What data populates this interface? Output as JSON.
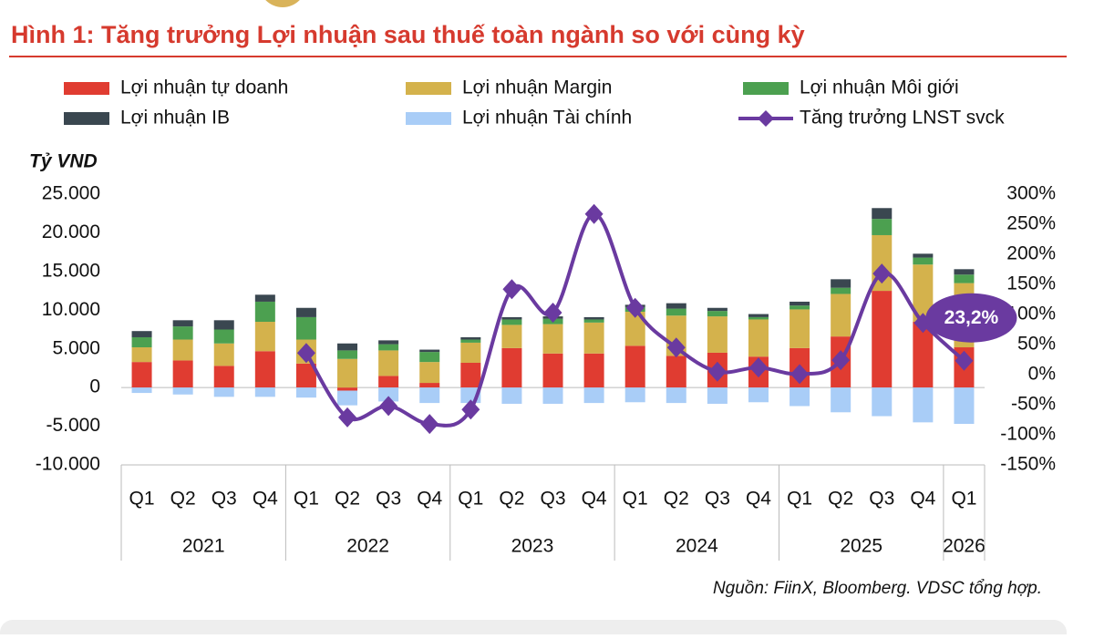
{
  "chart_data": {
    "type": "bar",
    "title": "Hình 1: Tăng trưởng Lợi nhuận sau thuế toàn ngành so với cùng kỳ",
    "y_label": "Tỷ VND",
    "source": "Nguồn: FiinX, Bloomberg. VDSC tổng hợp.",
    "stacked": true,
    "categories": [
      "Q1",
      "Q2",
      "Q3",
      "Q4",
      "Q1",
      "Q2",
      "Q3",
      "Q4",
      "Q1",
      "Q2",
      "Q3",
      "Q4",
      "Q1",
      "Q2",
      "Q3",
      "Q4",
      "Q1",
      "Q2",
      "Q3",
      "Q4",
      "Q1"
    ],
    "years": [
      "2021",
      "2021",
      "2021",
      "2021",
      "2022",
      "2022",
      "2022",
      "2022",
      "2023",
      "2023",
      "2023",
      "2023",
      "2024",
      "2024",
      "2024",
      "2024",
      "2025",
      "2025",
      "2025",
      "2025",
      "2026"
    ],
    "series": [
      {
        "name": "Lợi nhuận tự doanh",
        "color": "#e03c31",
        "values": [
          3300,
          3500,
          2800,
          4700,
          3100,
          -400,
          1500,
          600,
          3200,
          5100,
          4400,
          4400,
          5400,
          4100,
          4500,
          4000,
          5100,
          6600,
          12500,
          8500,
          5200
        ]
      },
      {
        "name": "Lợi nhuận Margin",
        "color": "#d4b24c",
        "values": [
          1900,
          2700,
          2900,
          3800,
          3100,
          3700,
          3300,
          2700,
          2600,
          3000,
          3800,
          4000,
          4400,
          5200,
          4700,
          4800,
          5000,
          5500,
          7200,
          7400,
          8300
        ]
      },
      {
        "name": "Lợi nhuận Môi giới",
        "color": "#4ca050",
        "values": [
          1300,
          1700,
          1800,
          2600,
          2900,
          1100,
          800,
          1300,
          400,
          700,
          700,
          400,
          600,
          900,
          700,
          300,
          500,
          800,
          2100,
          900,
          1100
        ]
      },
      {
        "name": "Lợi nhuận IB",
        "color": "#3a4750",
        "values": [
          800,
          800,
          1200,
          900,
          1200,
          900,
          500,
          300,
          300,
          300,
          300,
          300,
          300,
          700,
          400,
          400,
          500,
          1100,
          1400,
          500,
          700
        ]
      },
      {
        "name": "Lợi nhuận Tài chính",
        "color": "#a9cdf7",
        "values": [
          -700,
          -900,
          -1200,
          -1200,
          -1300,
          -1900,
          -1800,
          -2000,
          -2000,
          -2100,
          -2100,
          -2000,
          -1900,
          -2000,
          -2100,
          -1900,
          -2400,
          -3200,
          -3700,
          -4500,
          -4700
        ]
      },
      {
        "name": "Tăng trưởng LNST svck",
        "type": "line",
        "axis": "y2",
        "color": "#6a3aa0",
        "values": [
          null,
          null,
          null,
          null,
          36,
          -71,
          -52,
          -82,
          -58,
          142,
          103,
          267,
          111,
          45,
          5,
          12,
          1,
          24,
          168,
          86,
          23.2
        ],
        "value_labels": [
          null,
          null,
          null,
          null,
          null,
          null,
          null,
          null,
          null,
          null,
          null,
          null,
          null,
          null,
          null,
          null,
          null,
          null,
          null,
          null,
          "23,2%"
        ]
      }
    ],
    "ylim": [
      -10000,
      25000
    ],
    "yticks": [
      {
        "value": -10000,
        "label": "-10.000"
      },
      {
        "value": -5000,
        "label": "-5.000"
      },
      0,
      {
        "value": 5000,
        "label": "5.000"
      },
      {
        "value": 10000,
        "label": "10.000"
      },
      {
        "value": 15000,
        "label": "15.000"
      },
      {
        "value": 20000,
        "label": "20.000"
      },
      {
        "value": 25000,
        "label": "25.000"
      }
    ],
    "y2lim": [
      -150,
      300
    ],
    "y2ticks": [
      {
        "value": -150,
        "label": "-150%"
      },
      {
        "value": -100,
        "label": "-100%"
      },
      {
        "value": -50,
        "label": "-50%"
      },
      {
        "value": 0,
        "label": "0%"
      },
      {
        "value": 50,
        "label": "50%"
      },
      {
        "value": 100,
        "label": "100%"
      },
      {
        "value": 150,
        "label": "150%"
      },
      {
        "value": 200,
        "label": "200%"
      },
      {
        "value": 250,
        "label": "250%"
      },
      {
        "value": 300,
        "label": "300%"
      }
    ],
    "grid": false
  }
}
